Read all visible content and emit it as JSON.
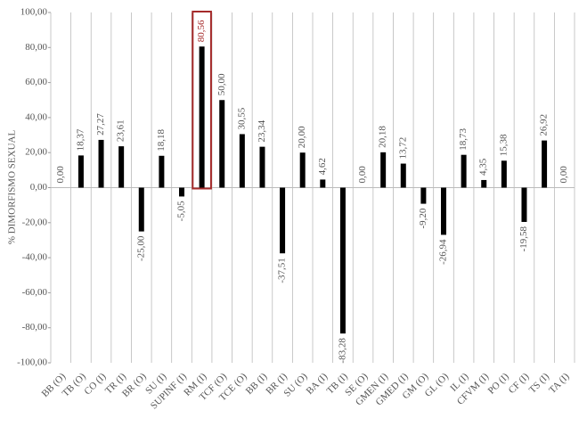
{
  "chart_data": {
    "type": "bar",
    "y_label": "% DIMORFISMO SEXUAL",
    "categories": [
      "BB (O)",
      "TB (O)",
      "CO (I)",
      "TR (I)",
      "BR (O)",
      "SU (I)",
      "SUPINF (I)",
      "RM (I)",
      "TCF (O)",
      "TCE (O)",
      "BB (I)",
      "BR (I)",
      "SU (O)",
      "BA (I)",
      "TB (I)",
      "SE (O)",
      "GMEN (I)",
      "GMED (I)",
      "GM (O)",
      "GL (O)",
      "IL (I)",
      "CFVM (I)",
      "PO (I)",
      "CF (I)",
      "TS (I)",
      "TA (I)"
    ],
    "values": [
      0,
      18.37,
      27.27,
      23.61,
      -25,
      18.18,
      -5.05,
      80.56,
      50,
      30.55,
      23.34,
      -37.51,
      20,
      4.62,
      -83.28,
      0,
      20.18,
      13.72,
      -9.2,
      -26.94,
      18.73,
      4.35,
      15.38,
      -19.58,
      26.92,
      0
    ],
    "value_labels": [
      "0,00",
      "18,37",
      "27,27",
      "23,61",
      "-25,00",
      "18,18",
      "-5,05",
      "80,56",
      "50,00",
      "30,55",
      "23,34",
      "-37,51",
      "20,00",
      "4,62",
      "-83,28",
      "0,00",
      "20,18",
      "13,72",
      "-9,20",
      "-26,94",
      "18,73",
      "4,35",
      "15,38",
      "-19,58",
      "26,92",
      "0,00"
    ],
    "color": "#000000",
    "highlight_index": 7,
    "highlight_color": "#a52a2a",
    "ylim": [
      -100,
      100
    ],
    "yticks": [
      {
        "value": -100,
        "label": "-100,00"
      },
      {
        "value": -80,
        "label": "-80,00"
      },
      {
        "value": -60,
        "label": "-60,00"
      },
      {
        "value": -40,
        "label": "-40,00"
      },
      {
        "value": -20,
        "label": "-20,00"
      },
      {
        "value": 0,
        "label": "0,00"
      },
      {
        "value": 20,
        "label": "20,00"
      },
      {
        "value": 40,
        "label": "40,00"
      },
      {
        "value": 60,
        "label": "60,00"
      },
      {
        "value": 80,
        "label": "80,00"
      },
      {
        "value": 100,
        "label": "100,00"
      }
    ]
  }
}
